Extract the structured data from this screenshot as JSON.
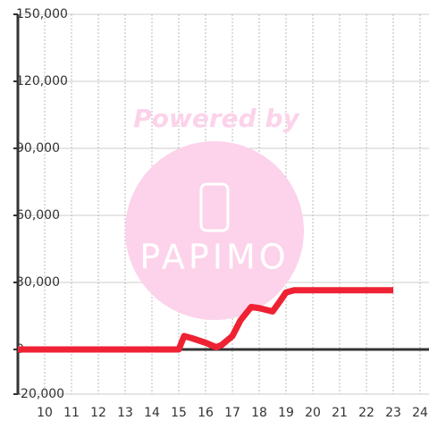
{
  "chart_data": {
    "type": "line",
    "x": [
      9,
      15,
      15.2,
      15.5,
      16,
      16.4,
      16.6,
      17,
      17.3,
      17.7,
      18,
      18.5,
      18.8,
      19,
      19.3,
      23
    ],
    "series": [
      {
        "color": "#ee2233",
        "values": [
          0,
          0,
          6000,
          5000,
          3000,
          1000,
          2000,
          6000,
          13000,
          19000,
          18500,
          17000,
          22000,
          25500,
          26500,
          26500
        ]
      }
    ],
    "xlim": [
      9,
      24.333
    ],
    "xticks": [
      10,
      11,
      12,
      13,
      14,
      15,
      16,
      17,
      18,
      19,
      20,
      21,
      22,
      23,
      24
    ],
    "ylim": [
      -20000,
      150000
    ],
    "yticks": [
      {
        "value": -20000,
        "label": "-20,000"
      },
      0,
      {
        "value": 30000,
        "label": "30,000"
      },
      {
        "value": 60000,
        "label": "60,000"
      },
      {
        "value": 90000,
        "label": "90,000"
      },
      {
        "value": 120000,
        "label": "120,000"
      },
      {
        "value": 150000,
        "label": "150,000"
      }
    ],
    "grid": true,
    "watermark": {
      "line1": "Powered by",
      "line2": "PAPIMO"
    }
  }
}
